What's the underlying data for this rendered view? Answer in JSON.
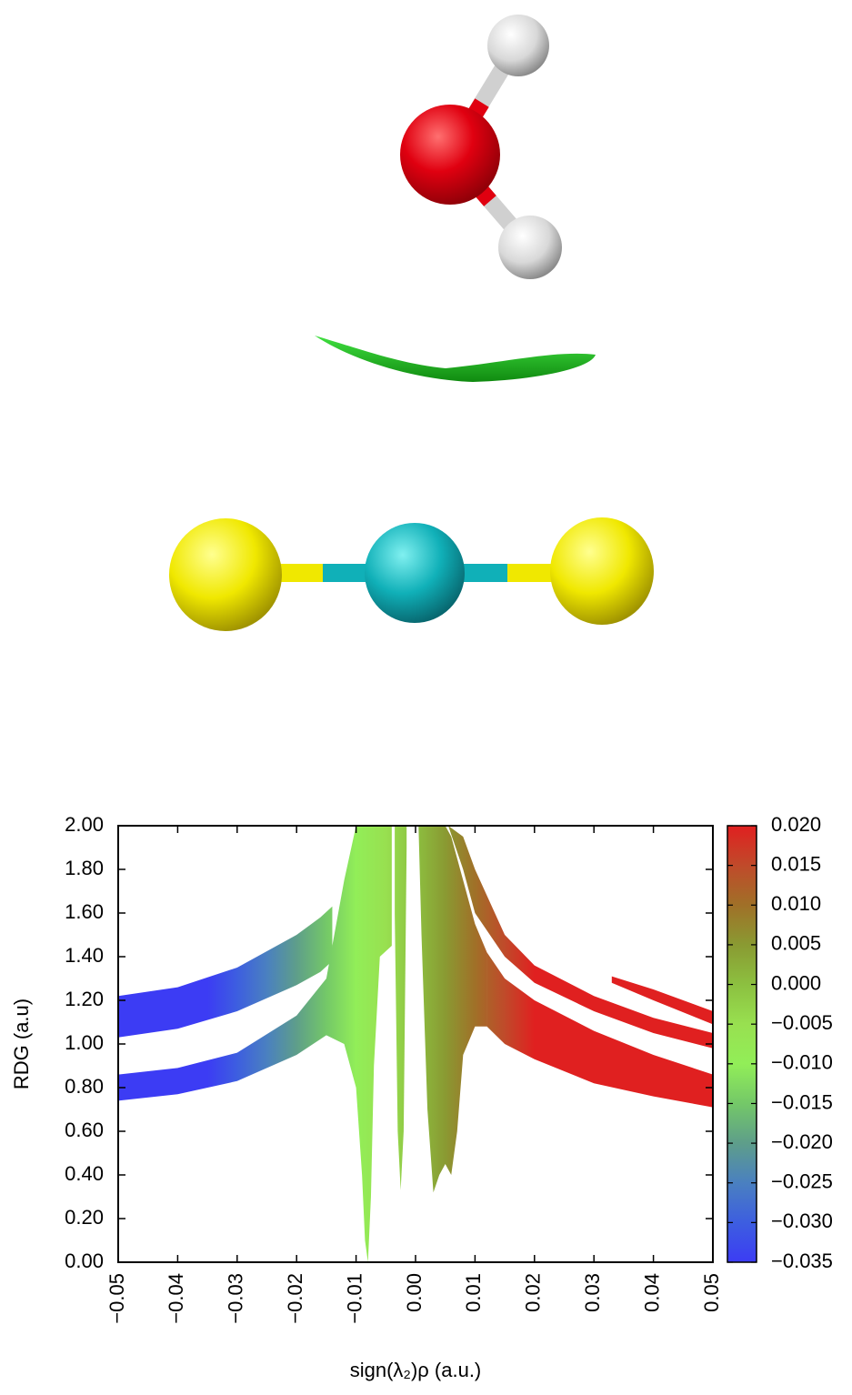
{
  "chart_data": {
    "type": "scatter",
    "x_label": "sign(λ₂)ρ (a.u.)",
    "y_label": "RDG (a.u)",
    "xlim": [
      -0.05,
      0.05
    ],
    "ylim": [
      0,
      2
    ],
    "xticks": [
      {
        "value": -0.05,
        "label": "−0.05"
      },
      {
        "value": -0.04,
        "label": "−0.04"
      },
      {
        "value": -0.03,
        "label": "−0.03"
      },
      {
        "value": -0.02,
        "label": "−0.02"
      },
      {
        "value": -0.01,
        "label": "−0.01"
      },
      {
        "value": 0,
        "label": "0.00"
      },
      {
        "value": 0.01,
        "label": "0.01"
      },
      {
        "value": 0.02,
        "label": "0.02"
      },
      {
        "value": 0.03,
        "label": "0.03"
      },
      {
        "value": 0.04,
        "label": "0.04"
      },
      {
        "value": 0.05,
        "label": "0.05"
      }
    ],
    "yticks": [
      {
        "value": 0,
        "label": "0.00"
      },
      {
        "value": 0.2,
        "label": "0.20"
      },
      {
        "value": 0.4,
        "label": "0.40"
      },
      {
        "value": 0.6,
        "label": "0.60"
      },
      {
        "value": 0.8,
        "label": "0.80"
      },
      {
        "value": 1,
        "label": "1.00"
      },
      {
        "value": 1.2,
        "label": "1.20"
      },
      {
        "value": 1.4,
        "label": "1.40"
      },
      {
        "value": 1.6,
        "label": "1.60"
      },
      {
        "value": 1.8,
        "label": "1.80"
      },
      {
        "value": 2,
        "label": "2.00"
      }
    ],
    "colorbar": {
      "lim": [
        -0.035,
        0.02
      ],
      "ticks": [
        {
          "value": 0.02,
          "label": "0.020"
        },
        {
          "value": 0.015,
          "label": "0.015"
        },
        {
          "value": 0.01,
          "label": "0.010"
        },
        {
          "value": 0.005,
          "label": "0.005"
        },
        {
          "value": 0,
          "label": "0.000"
        },
        {
          "value": -0.005,
          "label": "−0.005"
        },
        {
          "value": -0.01,
          "label": "−0.010"
        },
        {
          "value": -0.015,
          "label": "−0.015"
        },
        {
          "value": -0.02,
          "label": "−0.020"
        },
        {
          "value": -0.025,
          "label": "−0.025"
        },
        {
          "value": -0.03,
          "label": "−0.030"
        },
        {
          "value": -0.035,
          "label": "−0.035"
        }
      ],
      "scale": [
        {
          "value": -0.035,
          "color": "#3c3cf4"
        },
        {
          "value": -0.03,
          "color": "#3d5ee0"
        },
        {
          "value": -0.025,
          "color": "#4a80c0"
        },
        {
          "value": -0.02,
          "color": "#5e9e8a"
        },
        {
          "value": -0.015,
          "color": "#74c868"
        },
        {
          "value": -0.01,
          "color": "#92ee58"
        },
        {
          "value": -0.005,
          "color": "#98e050"
        },
        {
          "value": 0,
          "color": "#8cc040"
        },
        {
          "value": 0.005,
          "color": "#8a9a32"
        },
        {
          "value": 0.01,
          "color": "#a07028"
        },
        {
          "value": 0.015,
          "color": "#c04a2a"
        },
        {
          "value": 0.02,
          "color": "#e02020"
        }
      ]
    },
    "series": [
      {
        "x": [
          -0.05,
          -0.04,
          -0.03,
          -0.02,
          -0.015,
          -0.012,
          -0.01,
          -0.009,
          -0.0085,
          -0.008,
          -0.0075,
          -0.007,
          -0.006,
          -0.004
        ],
        "lower": [
          0.74,
          0.77,
          0.83,
          0.95,
          1.04,
          1.0,
          0.8,
          0.4,
          0.1,
          0.0,
          0.3,
          0.9,
          1.4,
          1.45
        ],
        "upper": [
          0.86,
          0.89,
          0.96,
          1.13,
          1.3,
          1.75,
          2.0,
          2.0,
          2.0,
          2.0,
          2.0,
          2.0,
          2.0,
          2.0
        ]
      },
      {
        "x": [
          -0.05,
          -0.04,
          -0.03,
          -0.02,
          -0.016,
          -0.014
        ],
        "lower": [
          1.03,
          1.07,
          1.15,
          1.27,
          1.33,
          1.38
        ],
        "upper": [
          1.22,
          1.26,
          1.35,
          1.5,
          1.58,
          1.63
        ]
      },
      {
        "x": [
          -0.0035,
          -0.003,
          -0.0025,
          -0.002,
          -0.0015
        ],
        "lower": [
          1.6,
          0.6,
          0.33,
          0.6,
          1.9
        ],
        "upper": [
          2.0,
          2.0,
          2.0,
          2.0,
          2.0
        ]
      },
      {
        "x": [
          0.0005,
          0.001,
          0.002,
          0.003,
          0.004,
          0.005,
          0.006,
          0.007,
          0.008,
          0.01,
          0.012
        ],
        "lower": [
          2.0,
          1.5,
          0.7,
          0.32,
          0.4,
          0.45,
          0.4,
          0.6,
          0.95,
          1.08,
          1.08
        ],
        "upper": [
          2.0,
          2.0,
          2.0,
          2.0,
          2.0,
          2.0,
          1.95,
          1.85,
          1.75,
          1.55,
          1.42
        ]
      },
      {
        "x": [
          0.012,
          0.015,
          0.02,
          0.03,
          0.04,
          0.05
        ],
        "lower": [
          1.08,
          1.0,
          0.93,
          0.82,
          0.76,
          0.71
        ],
        "upper": [
          1.42,
          1.3,
          1.2,
          1.06,
          0.95,
          0.86
        ]
      },
      {
        "x": [
          0.0055,
          0.008,
          0.01,
          0.015,
          0.02,
          0.03,
          0.04,
          0.05
        ],
        "lower": [
          2.0,
          1.8,
          1.6,
          1.4,
          1.28,
          1.15,
          1.05,
          0.98
        ],
        "upper": [
          2.0,
          1.95,
          1.8,
          1.5,
          1.36,
          1.22,
          1.12,
          1.05
        ]
      },
      {
        "x": [
          0.033,
          0.04,
          0.05
        ],
        "lower": [
          1.28,
          1.2,
          1.09
        ],
        "upper": [
          1.31,
          1.25,
          1.15
        ]
      }
    ]
  }
}
